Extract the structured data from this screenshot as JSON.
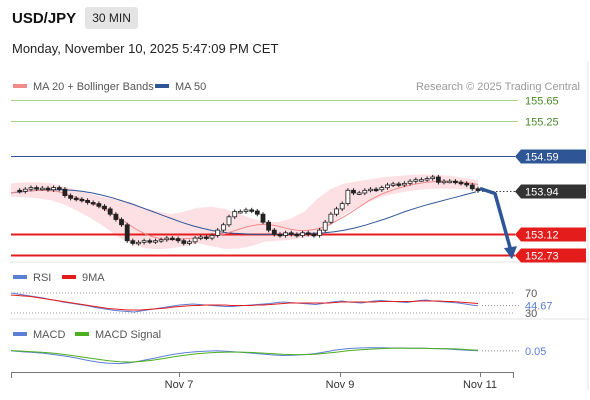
{
  "header": {
    "symbol": "USD/JPY",
    "timeframe": "30 MIN",
    "datetime": "Monday, November 10, 2025 5:47:09 PM CET"
  },
  "legend": {
    "ma20_bb": "MA 20 + Bollinger Bands",
    "ma50": "MA 50",
    "copyright": "Research © 2025 Trading Central"
  },
  "colors": {
    "bollinger_fill": "#fde0e4",
    "ma20": "#f28b8b",
    "ma50": "#2e5596",
    "support": "#e51c1c",
    "resistance": "#a8d48a",
    "pivot_line": "#2e5596",
    "arrow": "#2e5596",
    "rsi": "#5b7fd6",
    "rsi_ma": "#e51c1c",
    "macd": "#5b7fd6",
    "macd_signal": "#4caf1e"
  },
  "chart_data": [
    {
      "type": "line",
      "panel": "price",
      "ylim": [
        152.6,
        155.8
      ],
      "x_tick_labels": [
        "Nov 7",
        "Nov 9",
        "Nov 11"
      ],
      "levels": [
        {
          "value": 155.65,
          "label": "155.65",
          "kind": "resistance"
        },
        {
          "value": 155.25,
          "label": "155.25",
          "kind": "resistance"
        },
        {
          "value": 154.59,
          "label": "154.59",
          "kind": "pivot"
        },
        {
          "value": 153.12,
          "label": "153.12",
          "kind": "support"
        },
        {
          "value": 152.73,
          "label": "152.73",
          "kind": "support"
        }
      ],
      "last_price": {
        "value": 153.94,
        "label": "153.94"
      },
      "forecast_target": 152.73,
      "series": [
        {
          "role": "close",
          "values": [
            153.95,
            153.93,
            153.97,
            154.0,
            153.98,
            153.99,
            153.96,
            154.0,
            153.97,
            153.85,
            153.8,
            153.78,
            153.76,
            153.72,
            153.7,
            153.65,
            153.6,
            153.5,
            153.4,
            153.3,
            153.0,
            152.95,
            152.97,
            153.0,
            152.98,
            153.0,
            153.02,
            153.05,
            153.04,
            153.0,
            152.95,
            152.98,
            153.05,
            153.07,
            153.05,
            153.1,
            153.2,
            153.3,
            153.45,
            153.55,
            153.55,
            153.58,
            153.56,
            153.5,
            153.35,
            153.2,
            153.12,
            153.1,
            153.15,
            153.12,
            153.1,
            153.15,
            153.12,
            153.1,
            153.2,
            153.35,
            153.5,
            153.6,
            153.7,
            153.95,
            153.9,
            153.9,
            153.95,
            153.97,
            153.96,
            154.0,
            154.05,
            154.07,
            154.05,
            154.08,
            154.12,
            154.15,
            154.15,
            154.17,
            154.2,
            154.1,
            154.12,
            154.12,
            154.1,
            154.08,
            154.05,
            153.98,
            153.94
          ]
        },
        {
          "role": "ma20",
          "values": [
            153.9,
            153.92,
            153.93,
            153.94,
            153.95,
            153.95,
            153.94,
            153.93,
            153.9,
            153.86,
            153.82,
            153.78,
            153.73,
            153.68,
            153.62,
            153.55,
            153.48,
            153.4,
            153.32,
            153.24,
            153.17,
            153.11,
            153.07,
            153.04,
            153.02,
            153.02,
            153.03,
            153.04,
            153.05,
            153.06,
            153.07,
            153.08,
            153.1,
            153.13,
            153.17,
            153.21,
            153.25,
            153.28,
            153.3,
            153.31,
            153.3,
            153.28,
            153.25,
            153.22,
            153.2,
            153.19,
            153.2,
            153.22,
            153.25,
            153.3,
            153.36,
            153.43,
            153.5,
            153.58,
            153.66,
            153.74,
            153.81,
            153.87,
            153.92,
            153.96,
            154.0,
            154.03,
            154.06,
            154.08,
            154.1,
            154.11,
            154.12,
            154.12,
            154.12,
            154.11,
            154.1,
            154.08,
            154.06
          ]
        },
        {
          "role": "ma50",
          "values": [
            153.9,
            153.92,
            153.94,
            153.95,
            153.96,
            153.96,
            153.95,
            153.93,
            153.9,
            153.86,
            153.81,
            153.75,
            153.69,
            153.62,
            153.55,
            153.48,
            153.41,
            153.34,
            153.28,
            153.23,
            153.19,
            153.16,
            153.14,
            153.13,
            153.12,
            153.12,
            153.12,
            153.12,
            153.12,
            153.13,
            153.14,
            153.15,
            153.17,
            153.2,
            153.24,
            153.29,
            153.35,
            153.41,
            153.48,
            153.55,
            153.61,
            153.67,
            153.72,
            153.77,
            153.82,
            153.87,
            153.92
          ]
        },
        {
          "role": "bb_upper",
          "values": [
            154.08,
            154.1,
            154.1,
            154.08,
            154.02,
            153.95,
            153.88,
            153.82,
            153.78,
            153.72,
            153.62,
            153.55,
            153.5,
            153.55,
            153.62,
            153.64,
            153.6,
            153.52,
            153.42,
            153.36,
            153.35,
            153.42,
            153.55,
            153.8,
            153.98,
            154.08,
            154.12,
            154.16,
            154.2,
            154.22,
            154.24,
            154.25,
            154.24,
            154.22,
            154.18,
            154.15
          ]
        },
        {
          "role": "bb_lower",
          "values": [
            153.83,
            153.82,
            153.8,
            153.76,
            153.68,
            153.56,
            153.42,
            153.26,
            153.08,
            152.94,
            152.86,
            152.84,
            152.86,
            152.9,
            152.95,
            152.9,
            152.85,
            152.85,
            152.9,
            152.98,
            153.0,
            153.02,
            153.06,
            153.12,
            153.3,
            153.5,
            153.64,
            153.75,
            153.84,
            153.9,
            153.94,
            153.97,
            153.98,
            153.98,
            153.97,
            153.95
          ]
        }
      ]
    },
    {
      "type": "line",
      "panel": "rsi",
      "legend": [
        "RSI",
        "9MA"
      ],
      "ylim": [
        30,
        70
      ],
      "reference_levels": [
        "70",
        "30"
      ],
      "last_label": "44.67",
      "series": [
        {
          "name": "RSI",
          "values": [
            70,
            68,
            66,
            64,
            62,
            60,
            57,
            55,
            52,
            50,
            48,
            46,
            44,
            41,
            39,
            37,
            35,
            34,
            33,
            32,
            34,
            36,
            38,
            40,
            42,
            44,
            46,
            47,
            48,
            47,
            46,
            45,
            44,
            43,
            43,
            44,
            45,
            46,
            47,
            48,
            49,
            51,
            52,
            51,
            50,
            49,
            48,
            47,
            49,
            51,
            53,
            54,
            52,
            51,
            50,
            52,
            54,
            55,
            54,
            53,
            52,
            51,
            53,
            55,
            56,
            54,
            53,
            52,
            51,
            50,
            48,
            46,
            44.67
          ]
        },
        {
          "name": "9MA",
          "values": [
            66,
            65,
            64,
            63,
            61,
            59,
            57,
            55,
            53,
            51,
            49,
            47,
            45,
            43,
            41,
            39,
            38,
            37,
            36,
            36,
            36,
            37,
            38,
            39,
            40,
            42,
            43,
            44,
            45,
            45,
            46,
            46,
            46,
            46,
            45,
            45,
            45,
            45,
            46,
            46,
            47,
            48,
            49,
            50,
            50,
            50,
            50,
            50,
            50,
            50,
            51,
            52,
            52,
            52,
            52,
            52,
            52,
            53,
            53,
            53,
            53,
            53,
            53,
            54,
            54,
            54,
            54,
            53,
            53,
            52,
            51,
            50,
            49
          ]
        }
      ]
    },
    {
      "type": "line",
      "panel": "macd",
      "legend": [
        "MACD",
        "MACD Signal"
      ],
      "ylim": [
        -0.5,
        0.3
      ],
      "last_label": "0.05",
      "series": [
        {
          "name": "MACD",
          "values": [
            0.05,
            0.02,
            0.0,
            -0.03,
            -0.07,
            -0.12,
            -0.18,
            -0.25,
            -0.31,
            -0.35,
            -0.36,
            -0.33,
            -0.27,
            -0.2,
            -0.13,
            -0.06,
            -0.01,
            0.02,
            0.04,
            0.05,
            0.03,
            0.01,
            -0.02,
            -0.05,
            -0.08,
            -0.1,
            -0.09,
            -0.07,
            -0.04,
            0.02,
            0.08,
            0.12,
            0.14,
            0.15,
            0.15,
            0.14,
            0.14,
            0.13,
            0.13,
            0.12,
            0.11,
            0.09,
            0.07,
            0.05
          ]
        },
        {
          "name": "MACD Signal",
          "values": [
            0.06,
            0.04,
            0.02,
            0.0,
            -0.03,
            -0.07,
            -0.12,
            -0.17,
            -0.22,
            -0.27,
            -0.3,
            -0.31,
            -0.29,
            -0.25,
            -0.2,
            -0.14,
            -0.09,
            -0.05,
            -0.02,
            0.0,
            0.01,
            0.01,
            0.0,
            -0.02,
            -0.04,
            -0.06,
            -0.07,
            -0.07,
            -0.06,
            -0.03,
            0.01,
            0.05,
            0.08,
            0.1,
            0.12,
            0.13,
            0.13,
            0.13,
            0.13,
            0.12,
            0.12,
            0.11,
            0.09,
            0.07
          ]
        }
      ]
    }
  ]
}
